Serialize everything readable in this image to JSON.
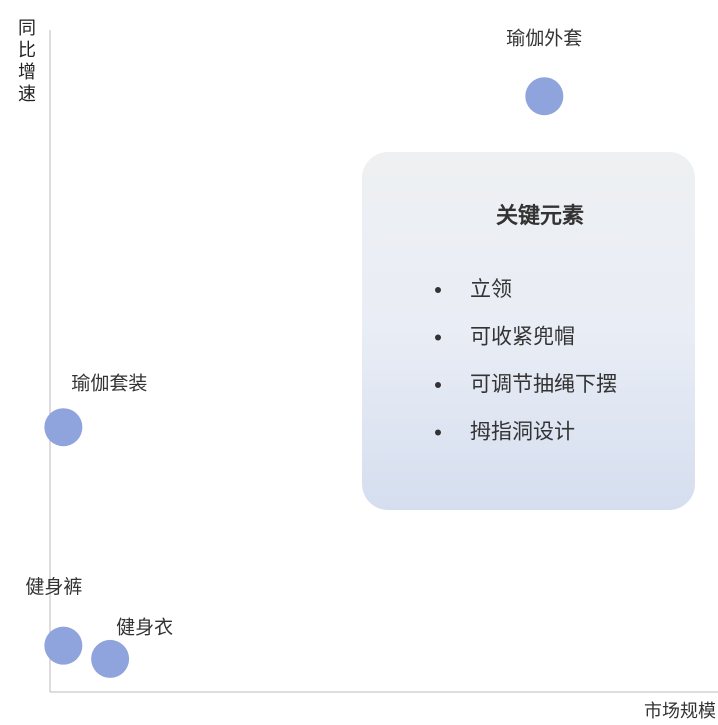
{
  "chart_data": {
    "type": "scatter",
    "x_label": "市场规模",
    "y_label": "同比增速",
    "point_labels": [
      "瑜伽外套",
      "瑜伽套装",
      "健身裤",
      "健身衣"
    ],
    "x": [
      74,
      2,
      2,
      9
    ],
    "values": [
      90,
      40,
      7,
      5
    ],
    "xlim": [
      0,
      100
    ],
    "ylim": [
      0,
      100
    ],
    "color": "#8fa3dc",
    "annotation": {
      "title": "关键元素",
      "items": [
        "立领",
        "可收紧兜帽",
        "可调节抽绳下摆",
        "拇指洞设计"
      ]
    }
  }
}
